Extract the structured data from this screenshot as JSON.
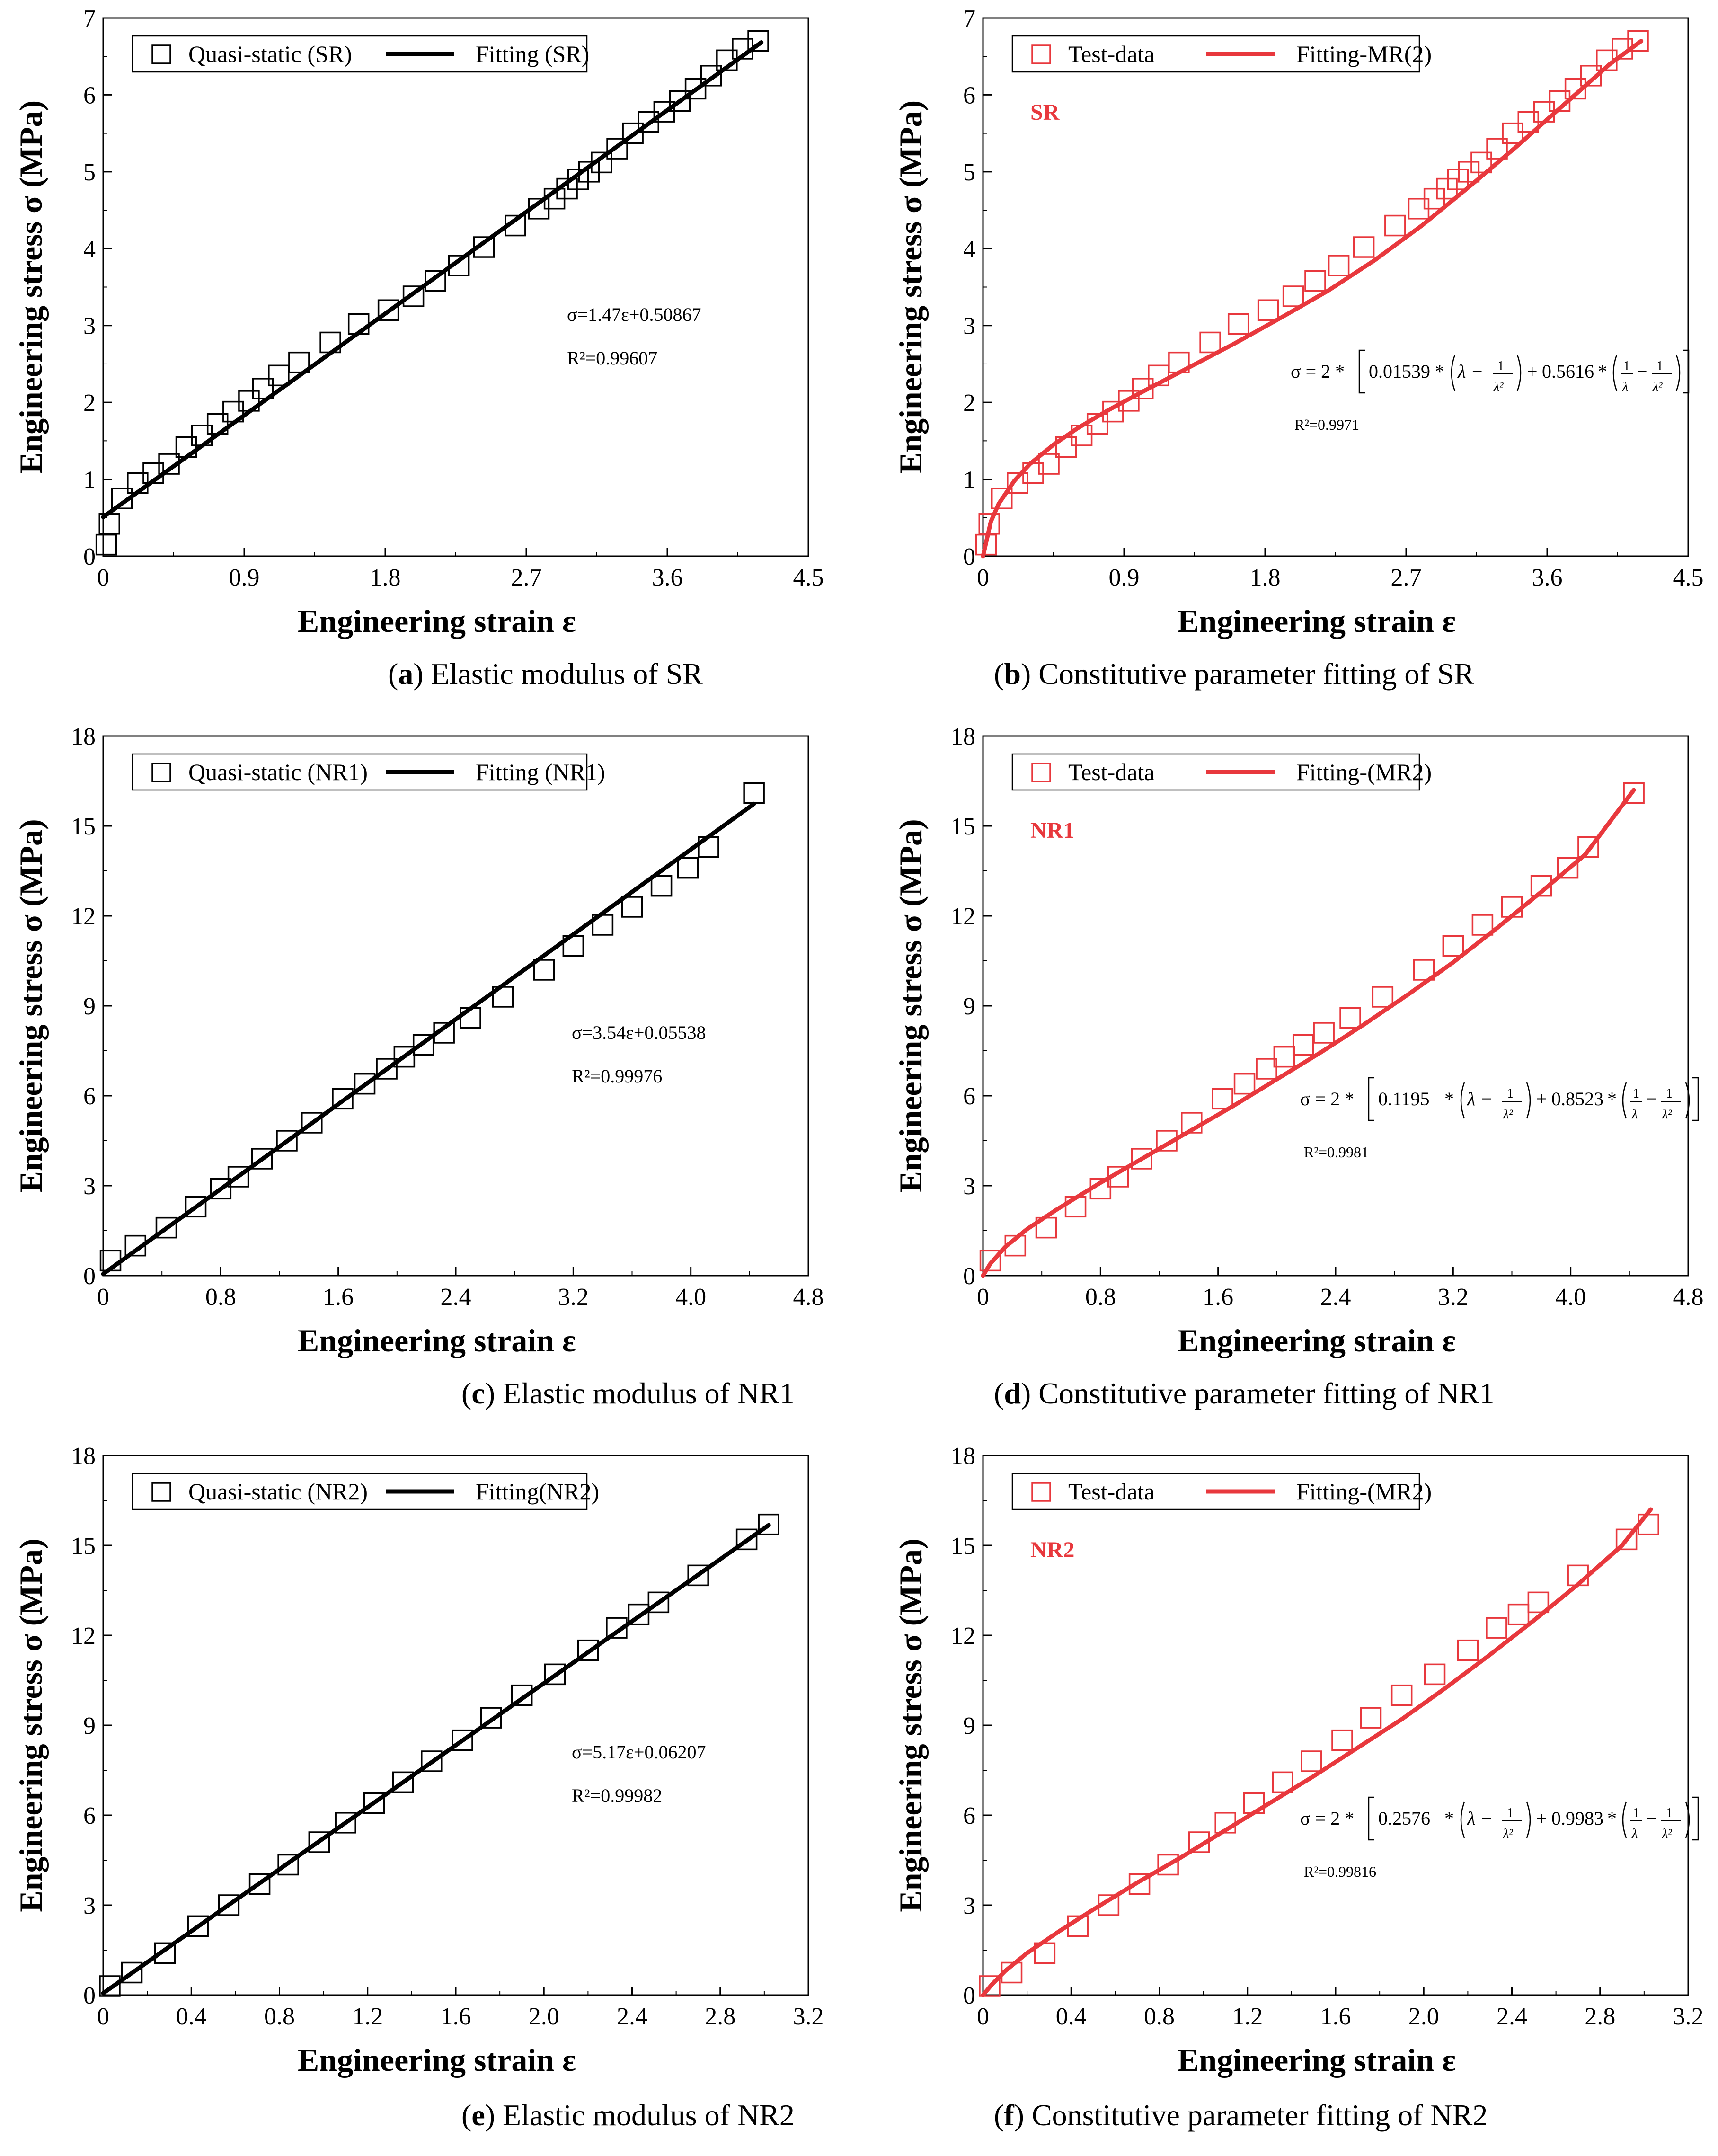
{
  "chart_data": [
    {
      "type": "scatter",
      "panel_label": "a",
      "caption": "Elastic modulus of SR",
      "xlabel": "Engineering strain ε",
      "ylabel": "Engineering stress σ (MPa)",
      "xlim": [
        0,
        4.5
      ],
      "ylim": [
        0,
        7
      ],
      "xticks": [
        "0",
        "0.9",
        "1.8",
        "2.7",
        "3.6",
        "4.5"
      ],
      "yticks": [
        "0",
        "1",
        "2",
        "3",
        "4",
        "5",
        "6",
        "7"
      ],
      "legend": {
        "position": "top-left",
        "scatter_label": "Quasi-static (SR)",
        "line_label": "Fitting (SR)"
      },
      "annotation": {
        "equation": "σ=1.47ε+0.50867",
        "r2": "R²=0.99607"
      },
      "color": "#000000",
      "scatter": {
        "name": "Quasi-static (SR)",
        "x": [
          0.02,
          0.04,
          0.12,
          0.22,
          0.32,
          0.42,
          0.53,
          0.63,
          0.73,
          0.83,
          0.93,
          1.02,
          1.12,
          1.25,
          1.45,
          1.63,
          1.82,
          1.98,
          2.12,
          2.27,
          2.43,
          2.63,
          2.78,
          2.88,
          2.96,
          3.03,
          3.1,
          3.18,
          3.28,
          3.38,
          3.48,
          3.58,
          3.68,
          3.78,
          3.88,
          3.98,
          4.08,
          4.18
        ],
        "y": [
          0.15,
          0.42,
          0.75,
          0.95,
          1.08,
          1.2,
          1.42,
          1.57,
          1.72,
          1.88,
          2.02,
          2.18,
          2.35,
          2.52,
          2.78,
          3.02,
          3.2,
          3.38,
          3.58,
          3.78,
          4.02,
          4.3,
          4.52,
          4.65,
          4.78,
          4.9,
          5.0,
          5.12,
          5.3,
          5.5,
          5.65,
          5.78,
          5.92,
          6.08,
          6.25,
          6.45,
          6.6,
          6.7
        ]
      },
      "fit": {
        "name": "Fitting (SR)",
        "kind": "linear",
        "slope": 1.47,
        "intercept": 0.50867,
        "x_end": 4.2
      }
    },
    {
      "type": "scatter",
      "panel_label": "b",
      "caption": "Constitutive parameter fitting of SR",
      "xlabel": "Engineering strain ε",
      "ylabel": "Engineering stress σ (MPa)",
      "xlim": [
        0,
        4.5
      ],
      "ylim": [
        0,
        7
      ],
      "xticks": [
        "0",
        "0.9",
        "1.8",
        "2.7",
        "3.6",
        "4.5"
      ],
      "yticks": [
        "0",
        "1",
        "2",
        "3",
        "4",
        "5",
        "6",
        "7"
      ],
      "legend": {
        "position": "top-left",
        "scatter_label": "Test-data",
        "line_label": "Fitting-MR(2)"
      },
      "material_label": "SR",
      "annotation": {
        "prefix": "σ = 2 *",
        "c1": "0.01539",
        "c2": "0.5616",
        "r2": "R²=0.9971"
      },
      "color": "#e8383d",
      "scatter": {
        "name": "Test-data",
        "x": [
          0.02,
          0.04,
          0.12,
          0.22,
          0.32,
          0.42,
          0.53,
          0.63,
          0.73,
          0.83,
          0.93,
          1.02,
          1.12,
          1.25,
          1.45,
          1.63,
          1.82,
          1.98,
          2.12,
          2.27,
          2.43,
          2.63,
          2.78,
          2.88,
          2.96,
          3.03,
          3.1,
          3.18,
          3.28,
          3.38,
          3.48,
          3.58,
          3.68,
          3.78,
          3.88,
          3.98,
          4.08,
          4.18
        ],
        "y": [
          0.15,
          0.42,
          0.75,
          0.95,
          1.08,
          1.2,
          1.42,
          1.57,
          1.72,
          1.88,
          2.02,
          2.18,
          2.35,
          2.52,
          2.78,
          3.02,
          3.2,
          3.38,
          3.58,
          3.78,
          4.02,
          4.3,
          4.52,
          4.65,
          4.78,
          4.9,
          5.0,
          5.12,
          5.3,
          5.5,
          5.65,
          5.78,
          5.92,
          6.08,
          6.25,
          6.45,
          6.6,
          6.7
        ]
      },
      "fit": {
        "name": "Fitting-MR(2)",
        "kind": "curve",
        "x": [
          0,
          0.05,
          0.1,
          0.2,
          0.3,
          0.45,
          0.6,
          0.8,
          1.0,
          1.3,
          1.6,
          1.9,
          2.2,
          2.5,
          2.8,
          3.1,
          3.4,
          3.7,
          4.0,
          4.2
        ],
        "y": [
          0,
          0.45,
          0.68,
          0.98,
          1.2,
          1.45,
          1.66,
          1.9,
          2.12,
          2.44,
          2.76,
          3.1,
          3.45,
          3.85,
          4.3,
          4.8,
          5.32,
          5.86,
          6.4,
          6.7
        ]
      }
    },
    {
      "type": "scatter",
      "panel_label": "c",
      "caption": "Elastic modulus of NR1",
      "xlabel": "Engineering strain ε",
      "ylabel": "Engineering stress σ (MPa)",
      "xlim": [
        0,
        4.8
      ],
      "ylim": [
        0,
        18
      ],
      "xticks": [
        "0",
        "0.8",
        "1.6",
        "2.4",
        "3.2",
        "4.0",
        "4.8"
      ],
      "yticks": [
        "0",
        "3",
        "6",
        "9",
        "12",
        "15",
        "18"
      ],
      "legend": {
        "position": "top-left",
        "scatter_label": "Quasi-static (NR1)",
        "line_label": "Fitting (NR1)"
      },
      "annotation": {
        "equation": "σ=3.54ε+0.05538",
        "r2": "R²=0.99976"
      },
      "color": "#000000",
      "scatter": {
        "name": "Quasi-static (NR1)",
        "x": [
          0.05,
          0.22,
          0.43,
          0.63,
          0.8,
          0.92,
          1.08,
          1.25,
          1.42,
          1.63,
          1.78,
          1.93,
          2.05,
          2.18,
          2.32,
          2.5,
          2.72,
          3.0,
          3.2,
          3.4,
          3.6,
          3.8,
          3.98,
          4.12,
          4.43
        ],
        "y": [
          0.5,
          1.0,
          1.6,
          2.3,
          2.9,
          3.3,
          3.9,
          4.5,
          5.1,
          5.9,
          6.4,
          6.9,
          7.3,
          7.7,
          8.1,
          8.6,
          9.3,
          10.2,
          11.0,
          11.7,
          12.3,
          13.0,
          13.6,
          14.3,
          16.1
        ]
      },
      "fit": {
        "name": "Fitting (NR1)",
        "kind": "linear",
        "slope": 3.54,
        "intercept": 0.05538,
        "x_end": 4.43
      }
    },
    {
      "type": "scatter",
      "panel_label": "d",
      "caption": "Constitutive parameter fitting of NR1",
      "xlabel": "Engineering strain ε",
      "ylabel": "Engineering stress σ (MPa)",
      "xlim": [
        0,
        4.8
      ],
      "ylim": [
        0,
        18
      ],
      "xticks": [
        "0",
        "0.8",
        "1.6",
        "2.4",
        "3.2",
        "4.0",
        "4.8"
      ],
      "yticks": [
        "0",
        "3",
        "6",
        "9",
        "12",
        "15",
        "18"
      ],
      "legend": {
        "position": "top-left",
        "scatter_label": "Test-data",
        "line_label": "Fitting-(MR2)"
      },
      "material_label": "NR1",
      "annotation": {
        "prefix": "σ = 2 *",
        "c1": "0.1195",
        "c2": "0.8523",
        "r2": "R²=0.9981"
      },
      "color": "#e8383d",
      "scatter": {
        "name": "Test-data",
        "x": [
          0.05,
          0.22,
          0.43,
          0.63,
          0.8,
          0.92,
          1.08,
          1.25,
          1.42,
          1.63,
          1.78,
          1.93,
          2.05,
          2.18,
          2.32,
          2.5,
          2.72,
          3.0,
          3.2,
          3.4,
          3.6,
          3.8,
          3.98,
          4.12,
          4.43
        ],
        "y": [
          0.5,
          1.0,
          1.6,
          2.3,
          2.9,
          3.3,
          3.9,
          4.5,
          5.1,
          5.9,
          6.4,
          6.9,
          7.3,
          7.7,
          8.1,
          8.6,
          9.3,
          10.2,
          11.0,
          11.7,
          12.3,
          13.0,
          13.6,
          14.3,
          16.1
        ]
      },
      "fit": {
        "name": "Fitting-(MR2)",
        "kind": "curve",
        "x": [
          0,
          0.05,
          0.15,
          0.3,
          0.5,
          0.8,
          1.1,
          1.4,
          1.7,
          2.0,
          2.3,
          2.6,
          2.9,
          3.2,
          3.5,
          3.8,
          4.1,
          4.43
        ],
        "y": [
          0,
          0.4,
          0.95,
          1.55,
          2.2,
          3.1,
          3.95,
          4.8,
          5.65,
          6.55,
          7.45,
          8.4,
          9.4,
          10.45,
          11.6,
          12.8,
          14.05,
          16.2
        ]
      }
    },
    {
      "type": "scatter",
      "panel_label": "e",
      "caption": "Elastic modulus of NR2",
      "xlabel": "Engineering strain ε",
      "ylabel": "Engineering stress σ (MPa)",
      "xlim": [
        0,
        3.2
      ],
      "ylim": [
        0,
        18
      ],
      "xticks": [
        "0",
        "0.4",
        "0.8",
        "1.2",
        "1.6",
        "2.0",
        "2.4",
        "2.8",
        "3.2"
      ],
      "yticks": [
        "0",
        "3",
        "6",
        "9",
        "12",
        "15",
        "18"
      ],
      "legend": {
        "position": "top-left",
        "scatter_label": "Quasi-static (NR2)",
        "line_label": "Fitting(NR2)"
      },
      "annotation": {
        "equation": "σ=5.17ε+0.06207",
        "r2": "R²=0.99982"
      },
      "color": "#000000",
      "scatter": {
        "name": "Quasi-static (NR2)",
        "x": [
          0.03,
          0.13,
          0.28,
          0.43,
          0.57,
          0.71,
          0.84,
          0.98,
          1.1,
          1.23,
          1.36,
          1.49,
          1.63,
          1.76,
          1.9,
          2.05,
          2.2,
          2.33,
          2.43,
          2.52,
          2.7,
          2.92,
          3.02
        ],
        "y": [
          0.3,
          0.75,
          1.4,
          2.3,
          3.0,
          3.7,
          4.35,
          5.1,
          5.75,
          6.4,
          7.1,
          7.8,
          8.5,
          9.25,
          10.0,
          10.7,
          11.5,
          12.25,
          12.7,
          13.1,
          14.0,
          15.2,
          15.7
        ]
      },
      "fit": {
        "name": "Fitting(NR2)",
        "kind": "linear",
        "slope": 5.17,
        "intercept": 0.06207,
        "x_end": 3.02
      }
    },
    {
      "type": "scatter",
      "panel_label": "f",
      "caption": "Constitutive parameter fitting of NR2",
      "xlabel": "Engineering strain ε",
      "ylabel": "Engineering stress σ (MPa)",
      "xlim": [
        0,
        3.2
      ],
      "ylim": [
        0,
        18
      ],
      "xticks": [
        "0",
        "0.4",
        "0.8",
        "1.2",
        "1.6",
        "2.0",
        "2.4",
        "2.8",
        "3.2"
      ],
      "yticks": [
        "0",
        "3",
        "6",
        "9",
        "12",
        "15",
        "18"
      ],
      "legend": {
        "position": "top-left",
        "scatter_label": "Test-data",
        "line_label": "Fitting-(MR2)"
      },
      "material_label": "NR2",
      "annotation": {
        "prefix": "σ = 2 *",
        "c1": "0.2576",
        "c2": "0.9983",
        "r2": "R²=0.99816"
      },
      "color": "#e8383d",
      "scatter": {
        "name": "Test-data",
        "x": [
          0.03,
          0.13,
          0.28,
          0.43,
          0.57,
          0.71,
          0.84,
          0.98,
          1.1,
          1.23,
          1.36,
          1.49,
          1.63,
          1.76,
          1.9,
          2.05,
          2.2,
          2.33,
          2.43,
          2.52,
          2.7,
          2.92,
          3.02
        ],
        "y": [
          0.3,
          0.75,
          1.4,
          2.3,
          3.0,
          3.7,
          4.35,
          5.1,
          5.75,
          6.4,
          7.1,
          7.8,
          8.5,
          9.25,
          10.0,
          10.7,
          11.5,
          12.25,
          12.7,
          13.1,
          14.0,
          15.2,
          15.7
        ]
      },
      "fit": {
        "name": "Fitting-(MR2)",
        "kind": "curve",
        "x": [
          0,
          0.04,
          0.1,
          0.2,
          0.35,
          0.5,
          0.7,
          0.9,
          1.1,
          1.3,
          1.5,
          1.7,
          1.9,
          2.1,
          2.3,
          2.5,
          2.7,
          2.9,
          3.03
        ],
        "y": [
          0,
          0.35,
          0.8,
          1.4,
          2.15,
          2.85,
          3.75,
          4.6,
          5.5,
          6.4,
          7.3,
          8.25,
          9.2,
          10.25,
          11.35,
          12.5,
          13.7,
          15.0,
          16.2
        ]
      }
    }
  ]
}
